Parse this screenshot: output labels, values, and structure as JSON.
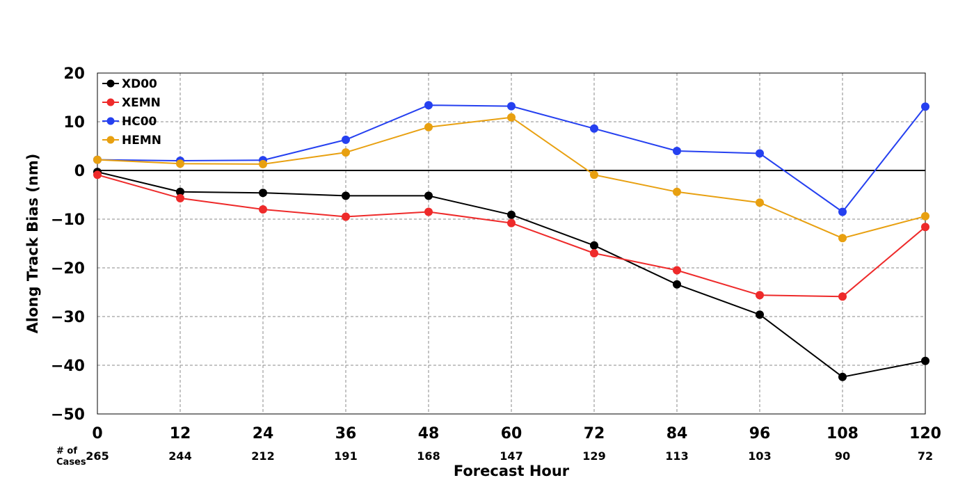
{
  "chart_data": {
    "type": "line",
    "xlabel": "Forecast Hour",
    "ylabel": "Along Track Bias (nm)",
    "x": [
      0,
      12,
      24,
      36,
      48,
      60,
      72,
      84,
      96,
      108,
      120
    ],
    "xlim": [
      0,
      120
    ],
    "ylim": [
      -50,
      20
    ],
    "xticks": [
      "0",
      "12",
      "24",
      "36",
      "48",
      "60",
      "72",
      "84",
      "96",
      "108",
      "120"
    ],
    "yticks": [
      "20",
      "10",
      "0",
      "−10",
      "−20",
      "−30",
      "−40",
      "−50"
    ],
    "ytick_values": [
      20,
      10,
      0,
      -10,
      -20,
      -30,
      -40,
      -50
    ],
    "grid": true,
    "zero_line": true,
    "legend_position": "top-left",
    "cases_label_line1": "# of",
    "cases_label_line2": "Cases",
    "case_counts": [
      "265",
      "244",
      "212",
      "191",
      "168",
      "147",
      "129",
      "113",
      "103",
      "90",
      "72"
    ],
    "series": [
      {
        "name": "XD00",
        "color": "#000000",
        "values": [
          -0.3,
          -4.4,
          -4.6,
          -5.2,
          -5.2,
          -9.1,
          -15.4,
          -23.4,
          -29.6,
          -42.4,
          -39.1
        ]
      },
      {
        "name": "XEMN",
        "color": "#ee2a2a",
        "values": [
          -0.9,
          -5.7,
          -8.0,
          -9.5,
          -8.5,
          -10.8,
          -17.0,
          -20.5,
          -25.6,
          -25.9,
          -11.6
        ]
      },
      {
        "name": "HC00",
        "color": "#2540f0",
        "values": [
          2.2,
          2.0,
          2.1,
          6.3,
          13.4,
          13.2,
          8.6,
          4.0,
          3.5,
          -8.5,
          13.1
        ]
      },
      {
        "name": "HEMN",
        "color": "#e8a010",
        "values": [
          2.2,
          1.4,
          1.3,
          3.7,
          8.9,
          10.9,
          -0.9,
          -4.4,
          -6.6,
          -13.9,
          -9.4
        ]
      }
    ]
  }
}
